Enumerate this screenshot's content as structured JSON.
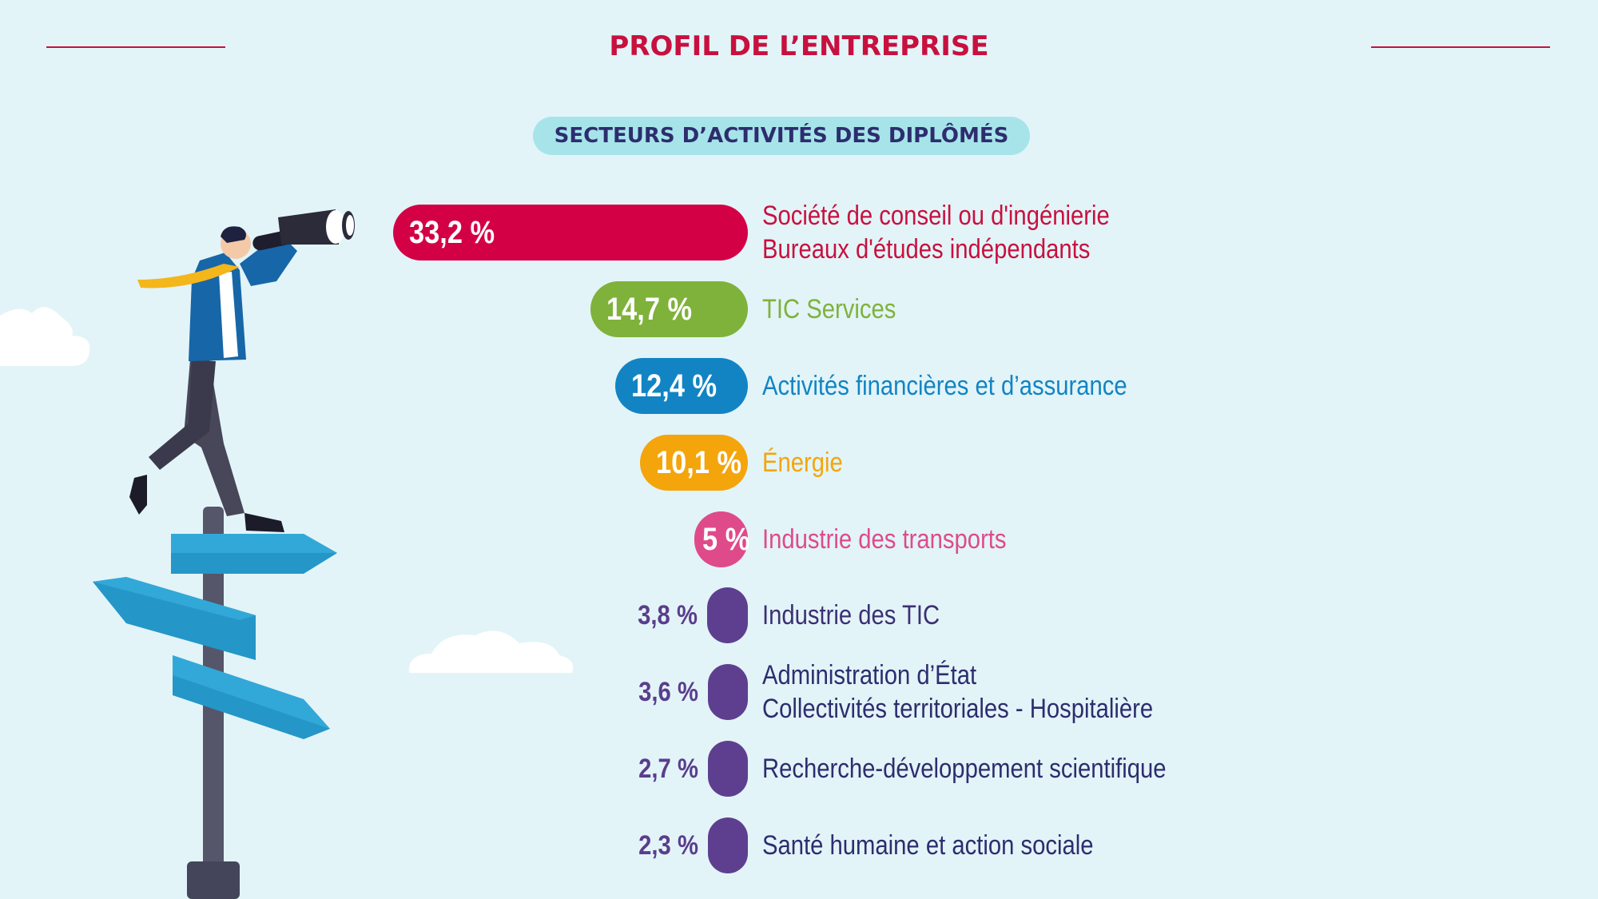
{
  "page": {
    "title": "PROFIL DE L’ENTREPRISE",
    "section_title": "SECTEURS D’ACTIVITÉS DES DIPLÔMÉS"
  },
  "chart_data": {
    "type": "bar",
    "orientation": "horizontal",
    "title": "SECTEURS D’ACTIVITÉS DES DIPLÔMÉS",
    "unit": "%",
    "categories": [
      [
        "Société de conseil ou d'ingénierie",
        "Bureaux d'études indépendants"
      ],
      [
        "TIC Services"
      ],
      [
        "Activités financières et d’assurance"
      ],
      [
        "Énergie"
      ],
      [
        "Industrie des transports"
      ],
      [
        "Industrie des TIC"
      ],
      [
        "Administration d’État",
        "Collectivités territoriales - Hospitalière"
      ],
      [
        "Recherche-développement scientifique"
      ],
      [
        "Santé humaine et action sociale"
      ]
    ],
    "values": [
      33.2,
      14.7,
      12.4,
      10.1,
      5,
      3.8,
      3.6,
      2.7,
      2.3
    ],
    "value_labels": [
      "33,2 %",
      "14,7 %",
      "12,4 %",
      "10,1 %",
      "5 %",
      "3,8 %",
      "3,6 %",
      "2,7 %",
      "2,3 %"
    ],
    "colors": [
      "#d40045",
      "#7fb23a",
      "#1284c4",
      "#f4a50b",
      "#df4a8b",
      "#5e3f8f",
      "#5e3f8f",
      "#5e3f8f",
      "#5e3f8f"
    ],
    "label_colors": [
      "#c8103f",
      "#7fb23a",
      "#1284c4",
      "#f4a50b",
      "#df4a8b",
      "#3c2f73",
      "#2d2d6e",
      "#2d2d6e",
      "#2d2d6e"
    ],
    "value_label_position": [
      "inside",
      "inside",
      "inside",
      "inside",
      "inside",
      "outside",
      "outside",
      "outside",
      "outside"
    ]
  },
  "colors": {
    "background": "#e2f4f8",
    "accent": "#c8103f",
    "pill": "#a6e4ea",
    "heading_text": "#2d2d6e"
  },
  "illustration": {
    "subject": "businessman-with-binoculars-on-signpost",
    "icons": [
      "binoculars-icon",
      "signpost-icon",
      "cloud-icon"
    ]
  }
}
